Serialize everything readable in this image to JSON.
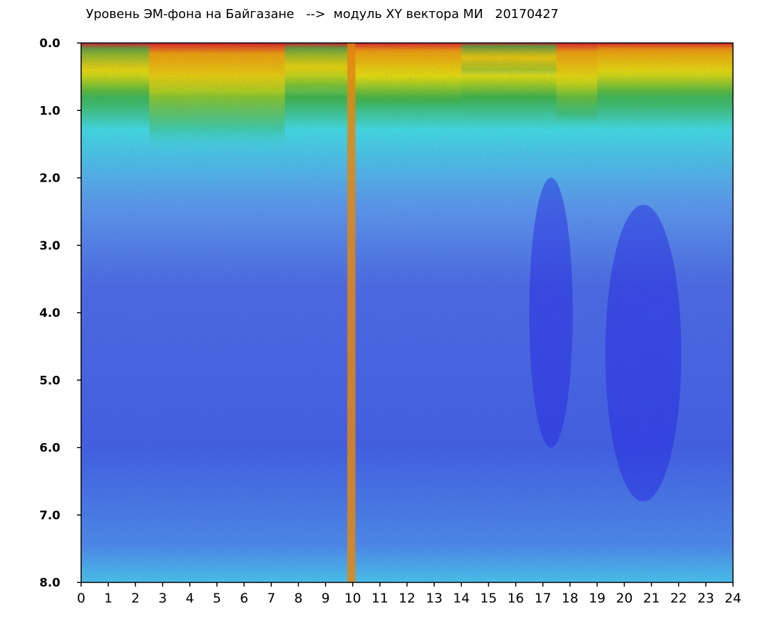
{
  "chart_data": {
    "type": "heatmap",
    "title": "Уровень ЭМ-фона на Байгазане   -->  модуль XY вектора МИ   20170427",
    "x_ticks": [
      "0",
      "1",
      "2",
      "3",
      "4",
      "5",
      "6",
      "7",
      "8",
      "9",
      "10",
      "11",
      "12",
      "13",
      "14",
      "15",
      "16",
      "17",
      "18",
      "19",
      "20",
      "21",
      "22",
      "23",
      "24"
    ],
    "y_ticks": [
      "0.0",
      "1.0",
      "2.0",
      "3.0",
      "4.0",
      "5.0",
      "6.0",
      "7.0",
      "8.0"
    ],
    "xlim": [
      0,
      24
    ],
    "ylim": [
      0,
      8
    ],
    "y_inverted": true,
    "grid": false,
    "colormap": [
      "#1e1ee0",
      "#5a78e8",
      "#3ce6e6",
      "#12a012",
      "#f0e800",
      "#f08c00",
      "#e01e1e",
      "#ffffff"
    ],
    "intensity_profile": [
      {
        "x_start": 0.0,
        "x_end": 2.5,
        "high_band_top": 0.9,
        "level": "medium"
      },
      {
        "x_start": 2.5,
        "x_end": 7.5,
        "high_band_top": 1.6,
        "level": "high"
      },
      {
        "x_start": 7.5,
        "x_end": 9.8,
        "high_band_top": 0.8,
        "level": "medium"
      },
      {
        "x_start": 9.8,
        "x_end": 10.1,
        "high_band_top": 8.0,
        "level": "very-high"
      },
      {
        "x_start": 10.1,
        "x_end": 14.0,
        "high_band_top": 1.1,
        "level": "high"
      },
      {
        "x_start": 14.0,
        "x_end": 17.5,
        "high_band_top": 0.5,
        "level": "medium"
      },
      {
        "x_start": 17.5,
        "x_end": 19.0,
        "high_band_top": 1.3,
        "level": "high"
      },
      {
        "x_start": 19.0,
        "x_end": 24.0,
        "high_band_top": 0.9,
        "level": "high"
      }
    ],
    "low_regions": [
      {
        "x_center": 17.3,
        "y_center": 4.0,
        "x_radius": 0.8,
        "y_radius": 2.0
      },
      {
        "x_center": 20.7,
        "y_center": 4.6,
        "x_radius": 1.4,
        "y_radius": 2.2
      }
    ]
  }
}
